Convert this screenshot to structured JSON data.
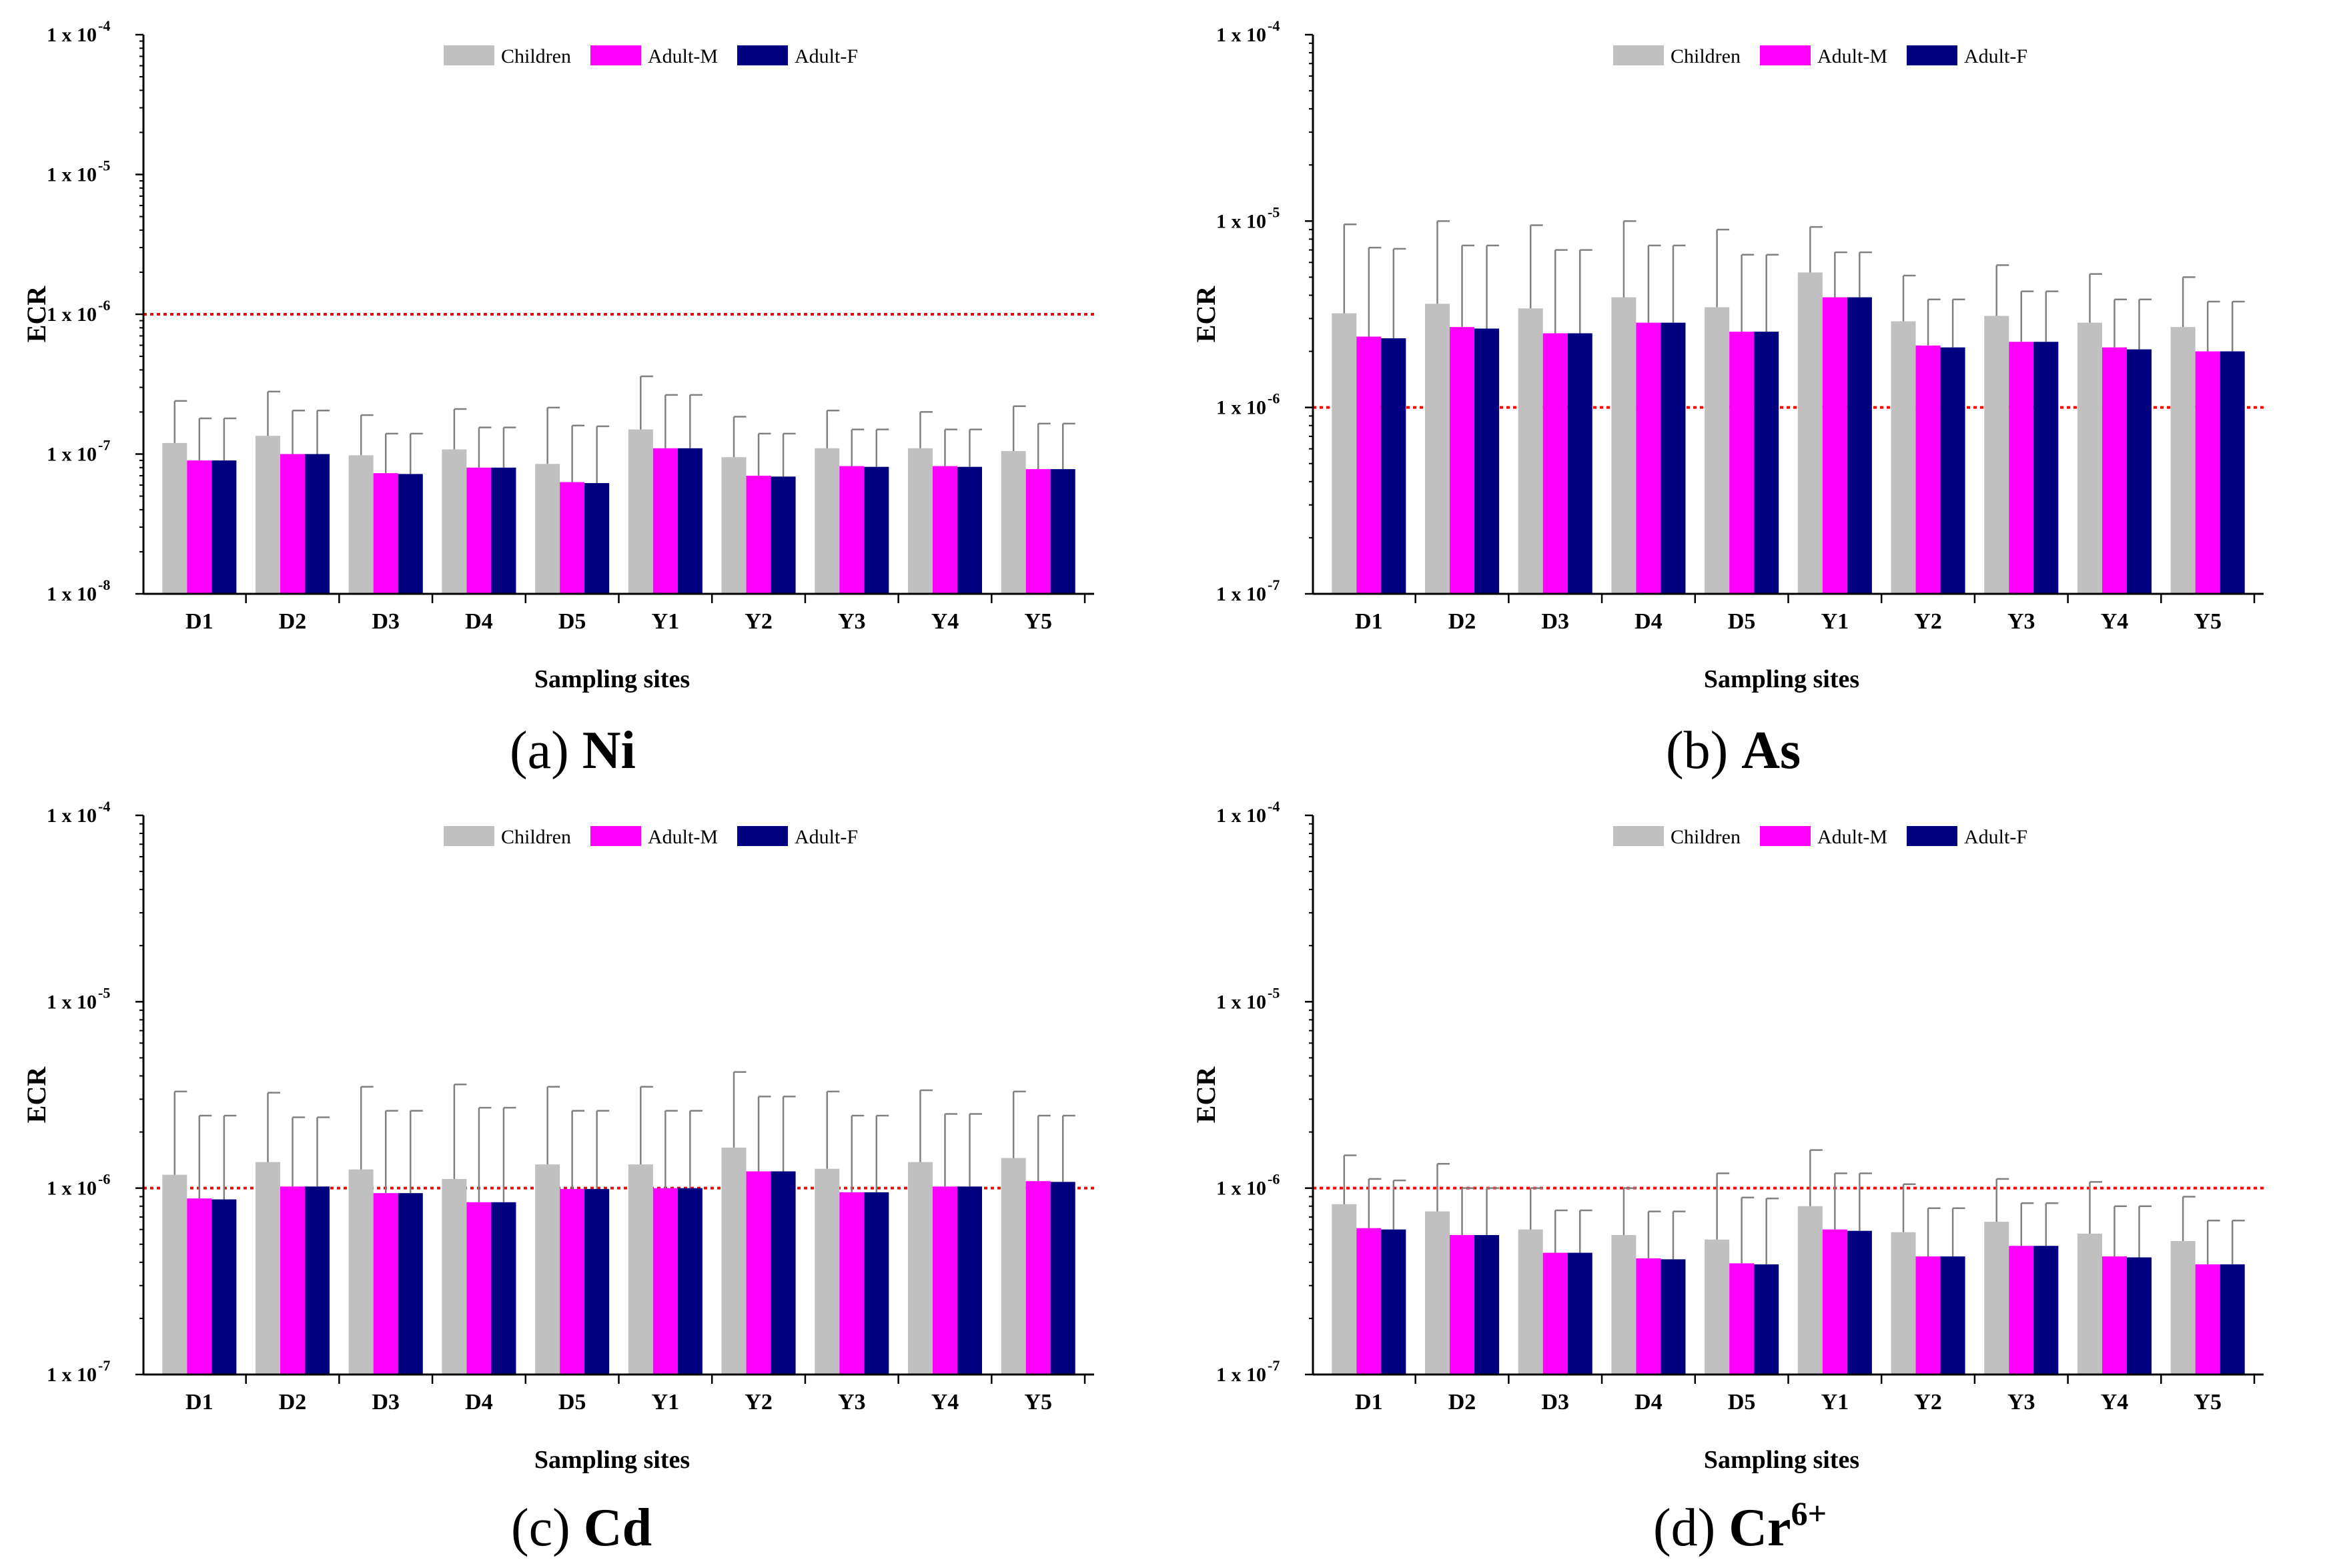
{
  "figure": {
    "legend": [
      "Children",
      "Adult-M",
      "Adult-F"
    ],
    "colors": {
      "children": "#c0c0c0",
      "adult_m": "#ff00ff",
      "adult_f": "#000080",
      "threshold": "#ff0000"
    }
  },
  "chart_data": [
    {
      "type": "bar",
      "panel": "a",
      "caption_prefix": "(a)",
      "caption_element": "Ni",
      "caption_sup": "",
      "title": "",
      "xlabel": "Sampling sites",
      "ylabel": "ECR",
      "yscale": "log",
      "ylim_exp": [
        -8,
        -4
      ],
      "ytick_labels": [
        "1 x 10",
        "1 x 10",
        "1 x 10",
        "1 x 10",
        "1 x 10"
      ],
      "ytick_exponents": [
        "-8",
        "-7",
        "-6",
        "-5",
        "-4"
      ],
      "threshold": 1e-06,
      "categories": [
        "D1",
        "D2",
        "D3",
        "D4",
        "D5",
        "Y1",
        "Y2",
        "Y3",
        "Y4",
        "Y5"
      ],
      "series": [
        {
          "name": "Children",
          "values": [
            1.2e-07,
            1.35e-07,
            9.8e-08,
            1.08e-07,
            8.5e-08,
            1.5e-07,
            9.5e-08,
            1.1e-07,
            1.1e-07,
            1.05e-07
          ],
          "errors": [
            2.4e-07,
            2.8e-07,
            1.9e-07,
            2.1e-07,
            2.15e-07,
            3.6e-07,
            1.85e-07,
            2.05e-07,
            2e-07,
            2.2e-07
          ]
        },
        {
          "name": "Adult-M",
          "values": [
            9e-08,
            1e-07,
            7.3e-08,
            8e-08,
            6.3e-08,
            1.1e-07,
            7e-08,
            8.2e-08,
            8.2e-08,
            7.8e-08
          ],
          "errors": [
            1.8e-07,
            2.05e-07,
            1.4e-07,
            1.55e-07,
            1.6e-07,
            2.65e-07,
            1.4e-07,
            1.5e-07,
            1.5e-07,
            1.65e-07
          ]
        },
        {
          "name": "Adult-F",
          "values": [
            9e-08,
            1e-07,
            7.2e-08,
            8e-08,
            6.2e-08,
            1.1e-07,
            6.9e-08,
            8.1e-08,
            8.1e-08,
            7.8e-08
          ],
          "errors": [
            1.8e-07,
            2.05e-07,
            1.4e-07,
            1.55e-07,
            1.58e-07,
            2.65e-07,
            1.4e-07,
            1.5e-07,
            1.5e-07,
            1.65e-07
          ]
        }
      ]
    },
    {
      "type": "bar",
      "panel": "b",
      "caption_prefix": "(b)",
      "caption_element": "As",
      "caption_sup": "",
      "title": "",
      "xlabel": "Sampling sites",
      "ylabel": "ECR",
      "yscale": "log",
      "ylim_exp": [
        -7,
        -4
      ],
      "ytick_labels": [
        "1 x 10",
        "1 x 10",
        "1 x 10",
        "1 x 10"
      ],
      "ytick_exponents": [
        "-7",
        "-6",
        "-5",
        "-4"
      ],
      "threshold": 1e-06,
      "categories": [
        "D1",
        "D2",
        "D3",
        "D4",
        "D5",
        "Y1",
        "Y2",
        "Y3",
        "Y4",
        "Y5"
      ],
      "series": [
        {
          "name": "Children",
          "values": [
            3.2e-06,
            3.6e-06,
            3.4e-06,
            3.9e-06,
            3.45e-06,
            5.3e-06,
            2.9e-06,
            3.1e-06,
            2.85e-06,
            2.7e-06
          ],
          "errors": [
            9.6e-06,
            1e-05,
            9.5e-06,
            1e-05,
            9e-06,
            9.3e-06,
            5.1e-06,
            5.8e-06,
            5.2e-06,
            5e-06
          ]
        },
        {
          "name": "Adult-M",
          "values": [
            2.4e-06,
            2.7e-06,
            2.5e-06,
            2.85e-06,
            2.55e-06,
            3.9e-06,
            2.15e-06,
            2.25e-06,
            2.1e-06,
            2e-06
          ],
          "errors": [
            7.2e-06,
            7.4e-06,
            7e-06,
            7.4e-06,
            6.6e-06,
            6.8e-06,
            3.8e-06,
            4.2e-06,
            3.8e-06,
            3.7e-06
          ]
        },
        {
          "name": "Adult-F",
          "values": [
            2.35e-06,
            2.65e-06,
            2.5e-06,
            2.85e-06,
            2.55e-06,
            3.9e-06,
            2.1e-06,
            2.25e-06,
            2.05e-06,
            2e-06
          ],
          "errors": [
            7.1e-06,
            7.4e-06,
            7e-06,
            7.4e-06,
            6.6e-06,
            6.8e-06,
            3.8e-06,
            4.2e-06,
            3.8e-06,
            3.7e-06
          ]
        }
      ]
    },
    {
      "type": "bar",
      "panel": "c",
      "caption_prefix": "(c)",
      "caption_element": "Cd",
      "caption_sup": "",
      "title": "",
      "xlabel": "Sampling sites",
      "ylabel": "ECR",
      "yscale": "log",
      "ylim_exp": [
        -7,
        -4
      ],
      "ytick_labels": [
        "1 x 10",
        "1 x 10",
        "1 x 10",
        "1 x 10"
      ],
      "ytick_exponents": [
        "-7",
        "-6",
        "-5",
        "-4"
      ],
      "threshold": 1e-06,
      "categories": [
        "D1",
        "D2",
        "D3",
        "D4",
        "D5",
        "Y1",
        "Y2",
        "Y3",
        "Y4",
        "Y5"
      ],
      "series": [
        {
          "name": "Children",
          "values": [
            1.18e-06,
            1.38e-06,
            1.26e-06,
            1.12e-06,
            1.34e-06,
            1.34e-06,
            1.65e-06,
            1.27e-06,
            1.38e-06,
            1.45e-06
          ],
          "errors": [
            3.3e-06,
            3.25e-06,
            3.5e-06,
            3.6e-06,
            3.5e-06,
            3.5e-06,
            4.2e-06,
            3.3e-06,
            3.35e-06,
            3.3e-06
          ]
        },
        {
          "name": "Adult-M",
          "values": [
            8.8e-07,
            1.02e-06,
            9.4e-07,
            8.4e-07,
            9.9e-07,
            1e-06,
            1.23e-06,
            9.5e-07,
            1.02e-06,
            1.09e-06
          ],
          "errors": [
            2.45e-06,
            2.4e-06,
            2.6e-06,
            2.7e-06,
            2.6e-06,
            2.6e-06,
            3.1e-06,
            2.45e-06,
            2.5e-06,
            2.45e-06
          ]
        },
        {
          "name": "Adult-F",
          "values": [
            8.7e-07,
            1.02e-06,
            9.4e-07,
            8.4e-07,
            9.9e-07,
            1e-06,
            1.23e-06,
            9.5e-07,
            1.02e-06,
            1.08e-06
          ],
          "errors": [
            2.45e-06,
            2.4e-06,
            2.6e-06,
            2.7e-06,
            2.6e-06,
            2.6e-06,
            3.1e-06,
            2.45e-06,
            2.5e-06,
            2.45e-06
          ]
        }
      ]
    },
    {
      "type": "bar",
      "panel": "d",
      "caption_prefix": "(d)",
      "caption_element": "Cr",
      "caption_sup": "6+",
      "title": "",
      "xlabel": "Sampling sites",
      "ylabel": "ECR",
      "yscale": "log",
      "ylim_exp": [
        -7,
        -4
      ],
      "ytick_labels": [
        "1 x 10",
        "1 x 10",
        "1 x 10",
        "1 x 10"
      ],
      "ytick_exponents": [
        "-7",
        "-6",
        "-5",
        "-4"
      ],
      "threshold": 1e-06,
      "categories": [
        "D1",
        "D2",
        "D3",
        "D4",
        "D5",
        "Y1",
        "Y2",
        "Y3",
        "Y4",
        "Y5"
      ],
      "series": [
        {
          "name": "Children",
          "values": [
            8.2e-07,
            7.5e-07,
            6e-07,
            5.6e-07,
            5.3e-07,
            8e-07,
            5.8e-07,
            6.6e-07,
            5.7e-07,
            5.2e-07
          ],
          "errors": [
            1.5e-06,
            1.35e-06,
            1e-06,
            1e-06,
            1.2e-06,
            1.6e-06,
            1.05e-06,
            1.12e-06,
            1.08e-06,
            9e-07
          ]
        },
        {
          "name": "Adult-M",
          "values": [
            6.1e-07,
            5.6e-07,
            4.5e-07,
            4.2e-07,
            3.95e-07,
            6e-07,
            4.3e-07,
            4.9e-07,
            4.3e-07,
            3.9e-07
          ],
          "errors": [
            1.12e-06,
            1e-06,
            7.6e-07,
            7.5e-07,
            8.9e-07,
            1.2e-06,
            7.8e-07,
            8.3e-07,
            8e-07,
            6.7e-07
          ]
        },
        {
          "name": "Adult-F",
          "values": [
            6e-07,
            5.6e-07,
            4.5e-07,
            4.15e-07,
            3.9e-07,
            5.9e-07,
            4.3e-07,
            4.9e-07,
            4.25e-07,
            3.9e-07
          ],
          "errors": [
            1.1e-06,
            1e-06,
            7.6e-07,
            7.5e-07,
            8.8e-07,
            1.2e-06,
            7.8e-07,
            8.3e-07,
            8e-07,
            6.7e-07
          ]
        }
      ]
    }
  ]
}
